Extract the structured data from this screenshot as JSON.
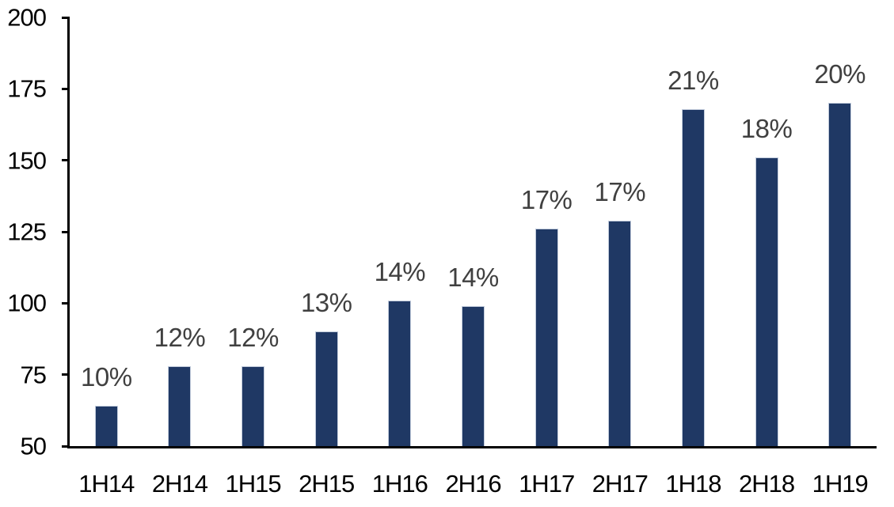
{
  "chart_data": {
    "type": "bar",
    "title": "",
    "xlabel": "",
    "ylabel": "",
    "categories": [
      "1H14",
      "2H14",
      "1H15",
      "2H15",
      "1H16",
      "2H16",
      "1H17",
      "2H17",
      "1H18",
      "2H18",
      "1H19"
    ],
    "values": [
      64,
      78,
      78,
      90,
      101,
      99,
      126,
      129,
      168,
      151,
      170
    ],
    "bar_labels": [
      "10%",
      "12%",
      "12%",
      "13%",
      "14%",
      "14%",
      "17%",
      "17%",
      "21%",
      "18%",
      "20%"
    ],
    "ylim": [
      50,
      200
    ],
    "yticks": [
      50,
      75,
      100,
      125,
      150,
      175,
      200
    ],
    "grid": false,
    "legend": null,
    "colors": {
      "bar_fill": "#1F3864",
      "bar_border": "#C2CCDC",
      "data_label": "#404040",
      "axis_text": "#000000",
      "axis_line": "#000000",
      "background": "#FFFFFF"
    }
  }
}
